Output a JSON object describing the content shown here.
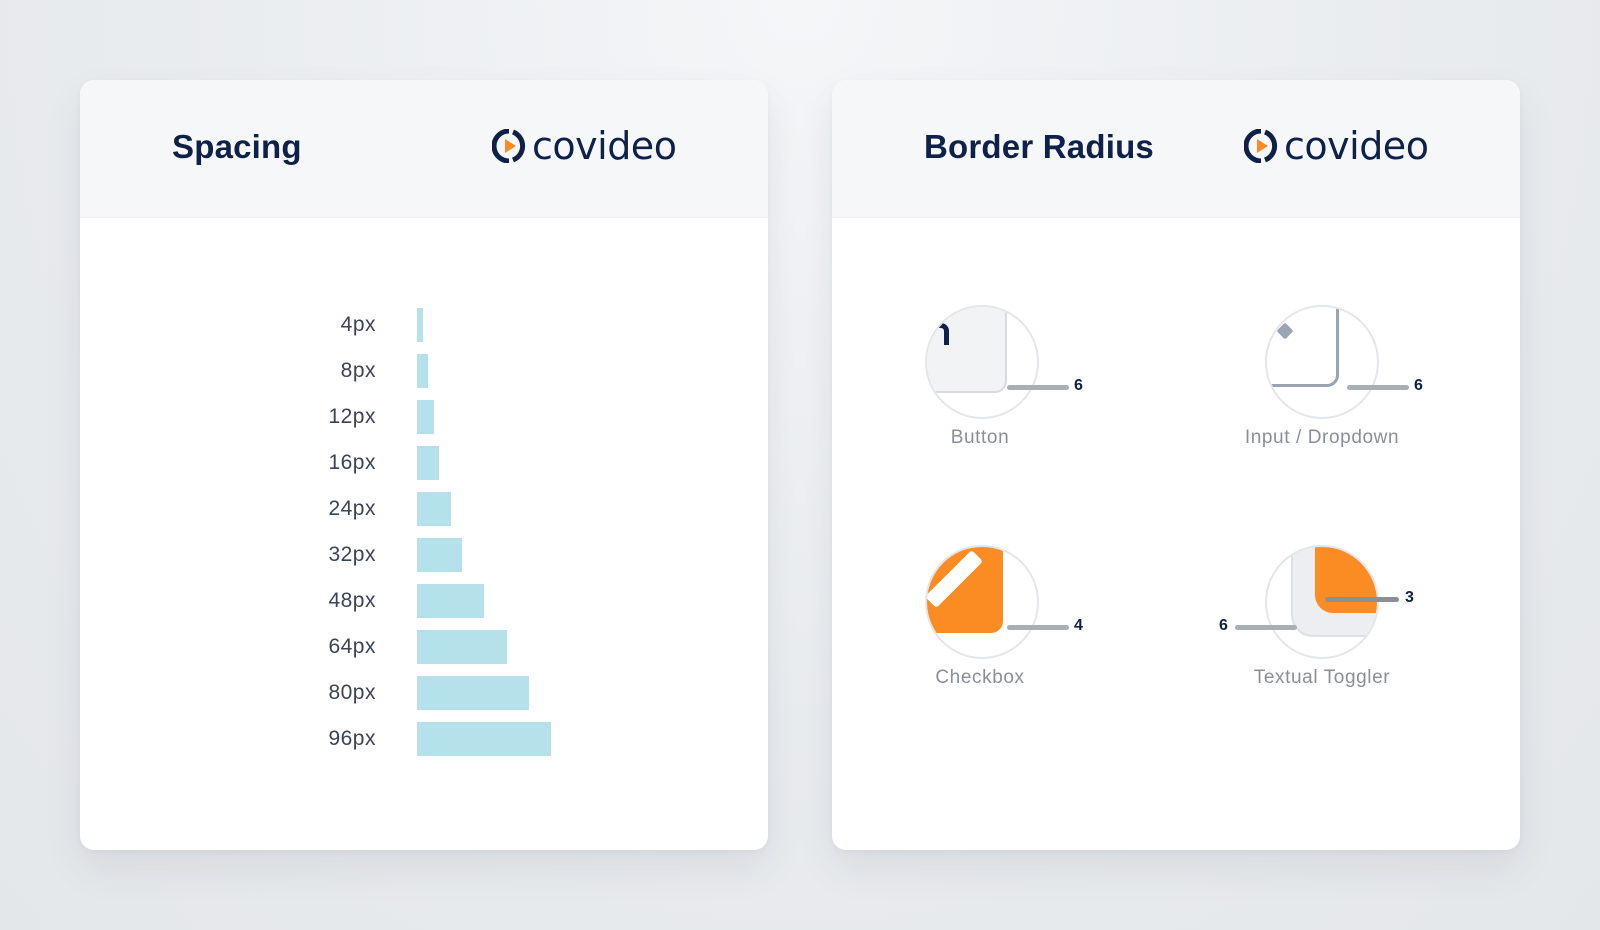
{
  "spacing_card": {
    "title": "Spacing",
    "logo_text": "covideo",
    "rows": [
      {
        "label": "4px",
        "value": 4
      },
      {
        "label": "8px",
        "value": 8
      },
      {
        "label": "12px",
        "value": 12
      },
      {
        "label": "16px",
        "value": 16
      },
      {
        "label": "24px",
        "value": 24
      },
      {
        "label": "32px",
        "value": 32
      },
      {
        "label": "48px",
        "value": 48
      },
      {
        "label": "64px",
        "value": 64
      },
      {
        "label": "80px",
        "value": 80
      },
      {
        "label": "96px",
        "value": 96
      }
    ],
    "bar_color": "#b5e1ea"
  },
  "radius_card": {
    "title": "Border Radius",
    "logo_text": "covideo",
    "demos": [
      {
        "label": "Button",
        "radius": "6"
      },
      {
        "label": "Input / Dropdown",
        "radius": "6"
      },
      {
        "label": "Checkbox",
        "radius": "4"
      },
      {
        "label": "Textual Toggler",
        "radius_inner": "3",
        "radius_outer": "6"
      }
    ]
  },
  "colors": {
    "navy": "#0f2148",
    "orange": "#fb8c24",
    "light_blue": "#b5e1ea"
  }
}
